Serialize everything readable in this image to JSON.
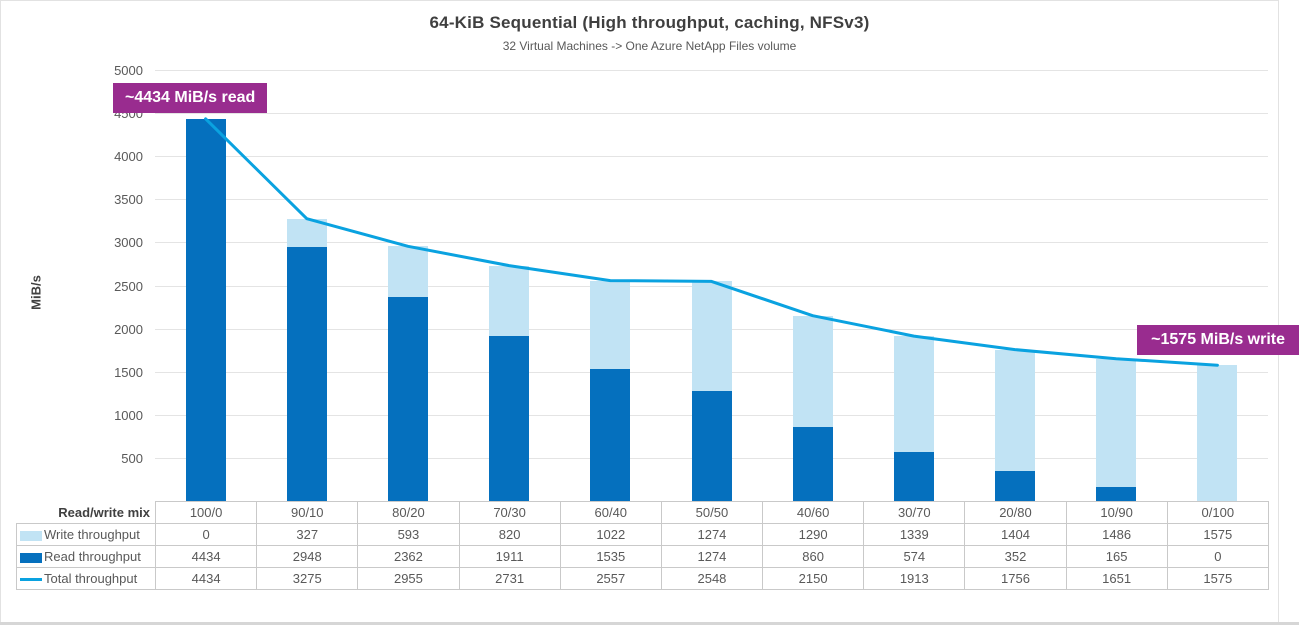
{
  "page": {
    "title": "64-KiB Sequential (High throughput, caching, NFSv3)",
    "subtitle": "32 Virtual Machines -> One Azure NetApp Files volume"
  },
  "annotations": {
    "read_callout": "~4434 MiB/s read",
    "write_callout": "~1575 MiB/s write"
  },
  "colors": {
    "read_bar": "#0570be",
    "write_bar": "#c1e3f4",
    "total_line": "#0aa2e0",
    "callout_bg": "#992c8f",
    "callout_text": "#ffffff",
    "gridline": "#e4e4e4",
    "table_border": "#c9c9c9"
  },
  "chart_data": {
    "type": "bar",
    "stacked": true,
    "title": "64-KiB Sequential (High throughput, caching, NFSv3)",
    "subtitle": "32 Virtual Machines -> One Azure NetApp Files volume",
    "xlabel": "",
    "ylabel": "MiB/s",
    "ylim": [
      0,
      5000
    ],
    "ytick_step": 500,
    "grid": true,
    "legend_position": "table-left",
    "row_header": "Read/write mix",
    "categories": [
      "100/0",
      "90/10",
      "80/20",
      "70/30",
      "60/40",
      "50/50",
      "40/60",
      "30/70",
      "20/80",
      "10/90",
      "0/100"
    ],
    "series": [
      {
        "name": "Write throughput",
        "type": "bar",
        "color": "#c1e3f4",
        "values": [
          0,
          327,
          593,
          820,
          1022,
          1274,
          1290,
          1339,
          1404,
          1486,
          1575
        ]
      },
      {
        "name": "Read throughput",
        "type": "bar",
        "color": "#0570be",
        "values": [
          4434,
          2948,
          2362,
          1911,
          1535,
          1274,
          860,
          574,
          352,
          165,
          0
        ]
      },
      {
        "name": "Total throughput",
        "type": "line",
        "color": "#0aa2e0",
        "values": [
          4434,
          3275,
          2955,
          2731,
          2557,
          2548,
          2150,
          1913,
          1756,
          1651,
          1575
        ]
      }
    ]
  }
}
